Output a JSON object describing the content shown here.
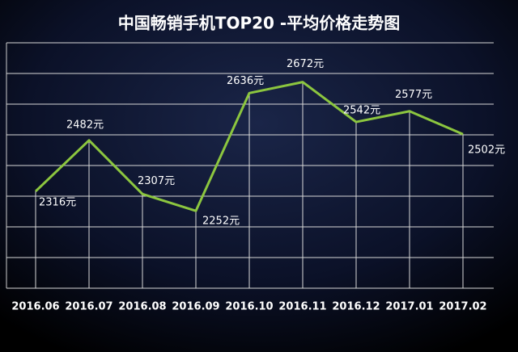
{
  "chart_data": {
    "type": "line",
    "title": "中国畅销手机TOP20 -平均价格走势图",
    "categories": [
      "2016.06",
      "2016.07",
      "2016.08",
      "2016.09",
      "2016.10",
      "2016.11",
      "2016.12",
      "2017.01",
      "2017.02"
    ],
    "values": [
      2316,
      2482,
      2307,
      2252,
      2636,
      2672,
      2542,
      2577,
      2502
    ],
    "value_labels": [
      "2316元",
      "2482元",
      "2307元",
      "2252元",
      "2636元",
      "2672元",
      "2542元",
      "2577元",
      "2502元"
    ],
    "color": "#8cc63f",
    "ylim": [
      2000,
      2800
    ],
    "yticks": [
      2000,
      2100,
      2200,
      2300,
      2400,
      2500,
      2600,
      2700,
      2800
    ],
    "grid": true
  }
}
